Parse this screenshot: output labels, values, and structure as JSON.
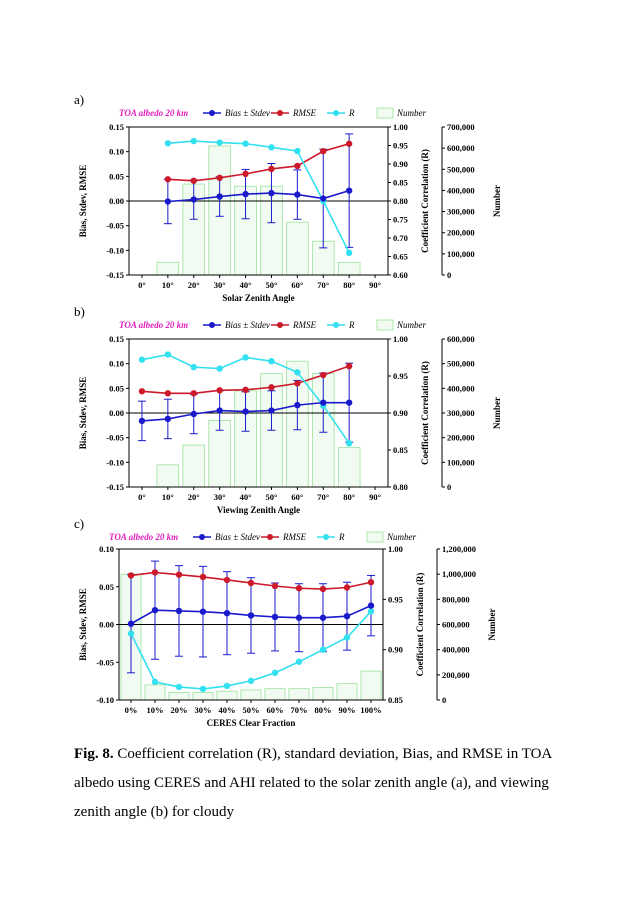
{
  "caption": {
    "label": "Fig. 8.",
    "text": " Coefficient correlation (R), standard deviation, Bias, and RMSE in TOA albedo using CERES and AHI related to the solar zenith angle (a), and viewing zenith angle (b) for cloudy"
  },
  "colors": {
    "bias": "#1a1acc",
    "rmse": "#cc1a2a",
    "r": "#33e0f0",
    "number": "#9be39b",
    "title": "#e020c0"
  },
  "chart_data": [
    {
      "panel": "a)",
      "type": "line",
      "legend": {
        "title": "TOA albedo 20 km",
        "bias": "Bias ± Stdev",
        "rmse": "RMSE",
        "r": "R",
        "number": "Number"
      },
      "xlabel": "Solar Zenith Angle",
      "ylabel_left": "Bias, Stdev, RMSE",
      "ylabel_right": "Coefficient Correlation (R)",
      "ylabel_far": "Number",
      "categories": [
        "0°",
        "10°",
        "20°",
        "30°",
        "40°",
        "50°",
        "60°",
        "70°",
        "80°",
        "90°"
      ],
      "left_ticks": [
        "0.15",
        "0.10",
        "0.05",
        "0.00",
        "-0.05",
        "-0.10",
        "-0.15"
      ],
      "right_ticks": [
        "1.00",
        "0.95",
        "0.90",
        "0.85",
        "0.80",
        "0.75",
        "0.70",
        "0.65",
        "0.60"
      ],
      "far_ticks": [
        "700,000",
        "600,000",
        "500,000",
        "400,000",
        "300,000",
        "200,000",
        "100,000",
        "0"
      ],
      "ylim": [
        -0.15,
        0.15
      ],
      "rlim": [
        0.6,
        1.0
      ],
      "nlim": [
        0,
        700000
      ],
      "bias": [
        null,
        -0.001,
        0.003,
        0.009,
        0.014,
        0.016,
        0.013,
        0.005,
        0.021,
        null
      ],
      "stdev": [
        null,
        0.045,
        0.04,
        0.04,
        0.05,
        0.06,
        0.05,
        0.1,
        0.115,
        null
      ],
      "rmse": [
        null,
        0.044,
        0.041,
        0.047,
        0.055,
        0.065,
        0.071,
        0.101,
        0.116,
        null
      ],
      "r": [
        null,
        0.956,
        0.962,
        0.958,
        0.955,
        0.945,
        0.935,
        0.8,
        0.66,
        null
      ],
      "number": [
        0,
        60000,
        430000,
        610000,
        420000,
        420000,
        250000,
        160000,
        60000,
        0
      ]
    },
    {
      "panel": "b)",
      "type": "line",
      "legend": {
        "title": "TOA albedo 20 km",
        "bias": "Bias ± Stdev",
        "rmse": "RMSE",
        "r": "R",
        "number": "Number"
      },
      "xlabel": "Viewing Zenith Angle",
      "ylabel_left": "Bias, Stdev, RMSE",
      "ylabel_right": "Coefficient Correlation (R)",
      "ylabel_far": "Number",
      "categories": [
        "0°",
        "10°",
        "20°",
        "30°",
        "40°",
        "50°",
        "60°",
        "70°",
        "80°",
        "90°"
      ],
      "left_ticks": [
        "0.15",
        "0.10",
        "0.05",
        "0.00",
        "-0.05",
        "-0.10",
        "-0.15"
      ],
      "right_ticks": [
        "1.00",
        "0.95",
        "0.90",
        "0.85",
        "0.80"
      ],
      "far_ticks": [
        "600,000",
        "500,000",
        "400,000",
        "300,000",
        "200,000",
        "100,000",
        "0"
      ],
      "ylim": [
        -0.15,
        0.15
      ],
      "rlim": [
        0.8,
        1.0
      ],
      "nlim": [
        0,
        600000
      ],
      "bias": [
        -0.016,
        -0.012,
        -0.002,
        0.005,
        0.003,
        0.005,
        0.016,
        0.021,
        0.021,
        null
      ],
      "stdev": [
        0.04,
        0.04,
        0.04,
        0.04,
        0.04,
        0.04,
        0.05,
        0.06,
        0.08,
        null
      ],
      "rmse": [
        0.044,
        0.04,
        0.04,
        0.046,
        0.047,
        0.052,
        0.06,
        0.077,
        0.095,
        null
      ],
      "r": [
        0.972,
        0.979,
        0.962,
        0.96,
        0.975,
        0.97,
        0.955,
        0.91,
        0.859,
        null
      ],
      "number": [
        0,
        90000,
        170000,
        270000,
        390000,
        460000,
        510000,
        460000,
        160000,
        0
      ]
    },
    {
      "panel": "c)",
      "type": "line",
      "legend": {
        "title": "TOA albedo 20 km",
        "bias": "Bias ± Stdev",
        "rmse": "RMSE",
        "r": "R",
        "number": "Number"
      },
      "xlabel": "CERES Clear Fraction",
      "ylabel_left": "Bias, Stdev, RMSE",
      "ylabel_right": "Coefficient Correlation (R)",
      "ylabel_far": "Number",
      "categories": [
        "0%",
        "10%",
        "20%",
        "30%",
        "40%",
        "50%",
        "60%",
        "70%",
        "80%",
        "90%",
        "100%"
      ],
      "left_ticks": [
        "0.10",
        "0.05",
        "0.00",
        "-0.05",
        "-0.10"
      ],
      "right_ticks": [
        "1.00",
        "0.95",
        "0.90",
        "0.85"
      ],
      "far_ticks": [
        "1,200,000",
        "1,000,000",
        "800,000",
        "600,000",
        "400,000",
        "200,000",
        "0"
      ],
      "ylim": [
        -0.1,
        0.1
      ],
      "rlim": [
        0.85,
        1.0
      ],
      "nlim": [
        0,
        1200000
      ],
      "bias": [
        0.001,
        0.019,
        0.018,
        0.017,
        0.015,
        0.012,
        0.01,
        0.009,
        0.009,
        0.011,
        0.025
      ],
      "stdev": [
        0.065,
        0.065,
        0.06,
        0.06,
        0.055,
        0.05,
        0.045,
        0.045,
        0.045,
        0.045,
        0.04
      ],
      "rmse": [
        0.065,
        0.069,
        0.066,
        0.063,
        0.059,
        0.055,
        0.051,
        0.048,
        0.047,
        0.049,
        0.056
      ],
      "r": [
        0.916,
        0.868,
        0.863,
        0.861,
        0.864,
        0.869,
        0.877,
        0.888,
        0.9,
        0.912,
        0.938
      ],
      "number": [
        1000000,
        120000,
        60000,
        60000,
        70000,
        80000,
        90000,
        90000,
        100000,
        130000,
        230000
      ]
    }
  ]
}
